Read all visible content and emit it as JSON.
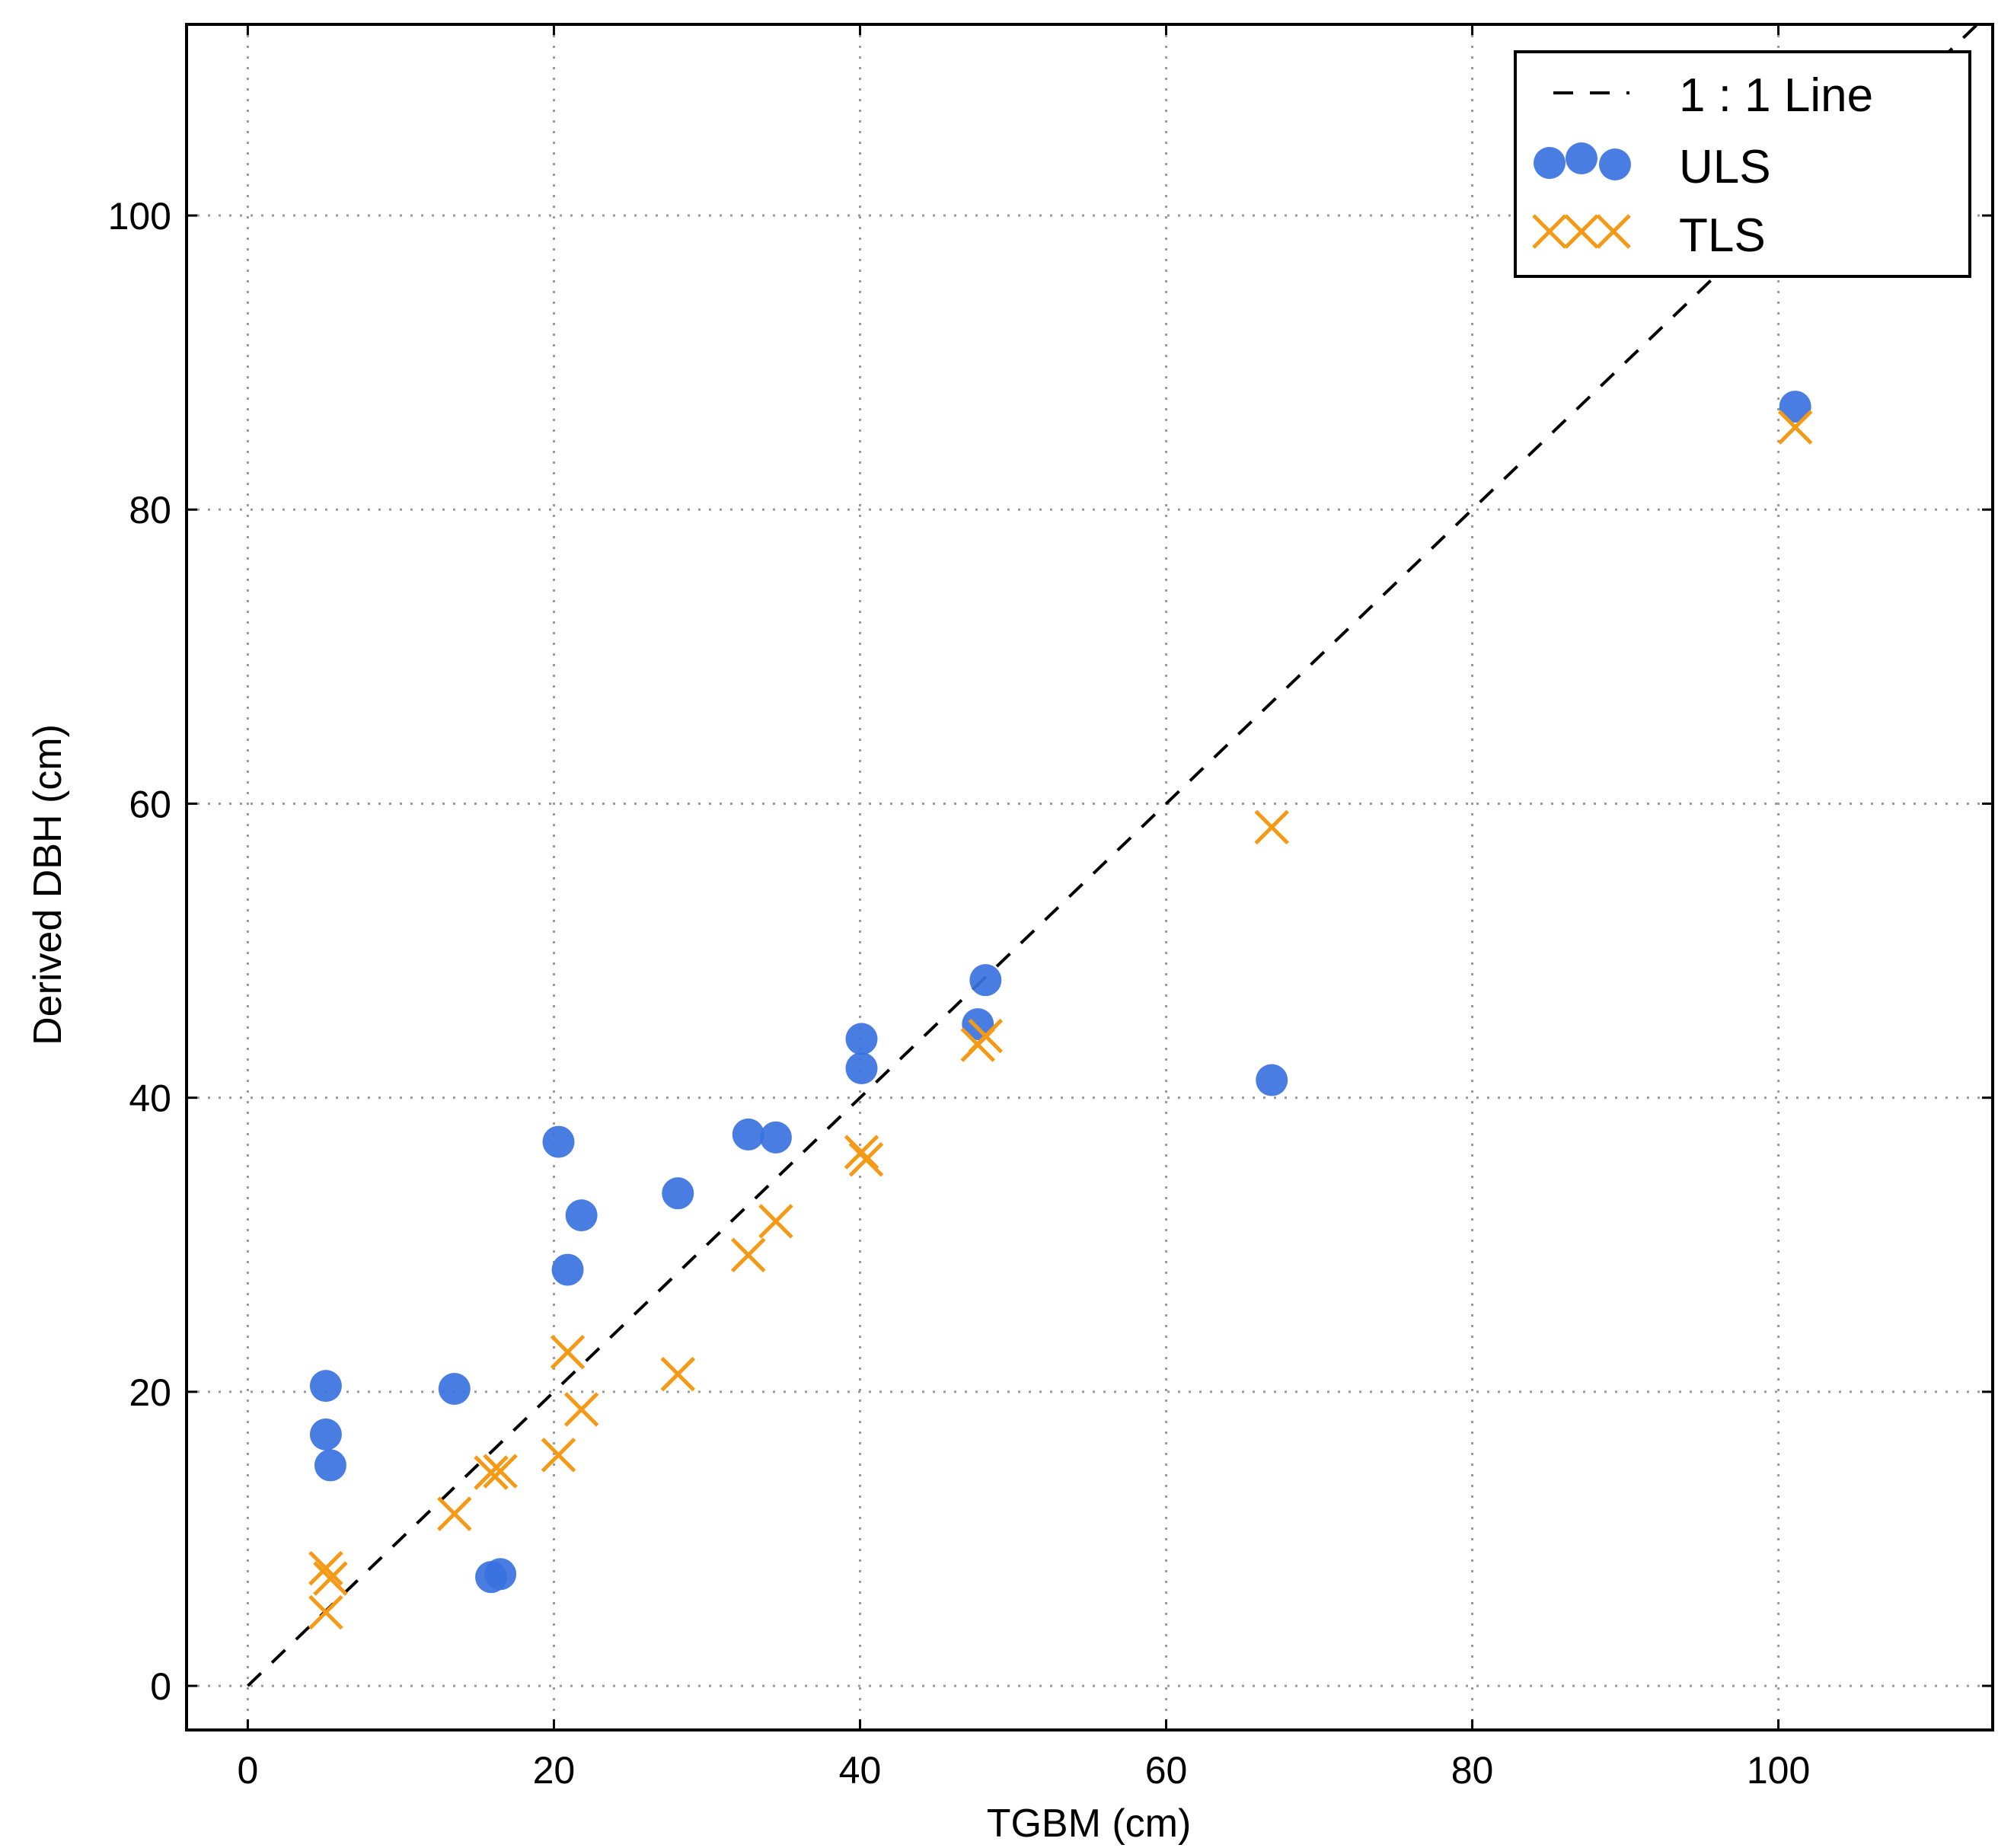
{
  "chart_data": {
    "type": "scatter",
    "title": "",
    "xlabel": "TGBM (cm)",
    "ylabel": "Derived DBH (cm)",
    "xlim": [
      -4,
      114
    ],
    "ylim": [
      -3,
      113
    ],
    "xticks": [
      0,
      20,
      40,
      60,
      80,
      100
    ],
    "yticks": [
      0,
      20,
      40,
      60,
      80,
      100
    ],
    "grid": true,
    "legend_position": "top-right",
    "series": [
      {
        "name": "1 : 1 Line",
        "kind": "line",
        "style": "dashed",
        "color": "#000000",
        "x": [
          0,
          113
        ],
        "y": [
          0,
          113
        ]
      },
      {
        "name": "ULS",
        "kind": "scatter",
        "marker": "circle",
        "color": "#3a72e0",
        "x": [
          5.1,
          5.1,
          5.4,
          13.5,
          15.9,
          16.5,
          20.3,
          20.9,
          21.8,
          28.1,
          32.7,
          34.5,
          40.1,
          40.1,
          47.7,
          48.2,
          66.9,
          101.1
        ],
        "y": [
          20.4,
          17.1,
          15.0,
          20.2,
          7.4,
          7.6,
          37.0,
          28.3,
          32.0,
          33.5,
          37.5,
          37.3,
          44.0,
          42.0,
          45.0,
          48.0,
          41.2,
          87.0
        ]
      },
      {
        "name": "TLS",
        "kind": "scatter",
        "marker": "x",
        "color": "#f59a16",
        "x": [
          5.1,
          5.4,
          5.1,
          13.5,
          15.9,
          16.5,
          20.3,
          20.9,
          21.8,
          28.1,
          32.7,
          34.5,
          40.1,
          40.4,
          47.7,
          48.2,
          66.9,
          101.1
        ],
        "y": [
          8.0,
          7.3,
          5.0,
          11.7,
          14.5,
          14.6,
          15.7,
          22.7,
          18.8,
          21.2,
          29.3,
          31.6,
          36.3,
          35.8,
          43.6,
          44.2,
          58.4,
          85.6
        ]
      }
    ]
  },
  "legend": {
    "line_label": "1 : 1 Line",
    "uls_label": "ULS",
    "tls_label": "TLS"
  }
}
